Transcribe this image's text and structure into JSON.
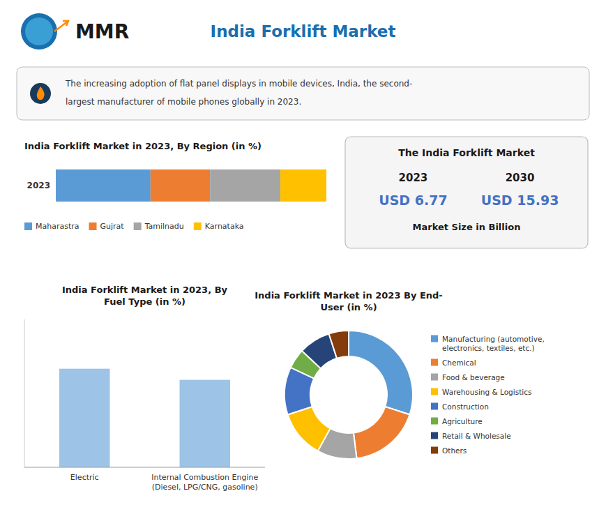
{
  "chart_data": [
    {
      "type": "text",
      "title": "India Forklift Market",
      "annotations": [
        "MMR",
        "The increasing adoption of flat panel displays in mobile devices, India, the second-",
        "largest manufacturer of mobile phones globally in 2023."
      ]
    },
    {
      "type": "bar",
      "orientation": "horizontal",
      "stacked": true,
      "title": "India Forklift Market in 2023, By Region (in %)",
      "categories": [
        "2023"
      ],
      "series": [
        {
          "name": "Maharastra",
          "color": "#5B9BD5",
          "values": [
            35
          ]
        },
        {
          "name": "Gujrat",
          "color": "#ED7D31",
          "values": [
            22
          ]
        },
        {
          "name": "Tamilnadu",
          "color": "#A5A5A5",
          "values": [
            26
          ]
        },
        {
          "name": "Karnataka",
          "color": "#FFC000",
          "values": [
            17
          ]
        }
      ],
      "xlim": [
        0,
        100
      ],
      "tick_labels": "y",
      "legend": "bottom"
    },
    {
      "type": "kpi",
      "title": "The India Forklift Market",
      "subtitle": "Market Size in Billion",
      "categories": [
        "2023",
        "2030"
      ],
      "values": [
        6.77,
        15.93
      ],
      "value_labels": [
        "USD 6.77",
        "USD 15.93"
      ],
      "color": "#4472C4"
    },
    {
      "type": "bar",
      "title": "India Forklift Market in 2023, By\nFuel Type (in %)",
      "categories": [
        "Electric",
        "Internal Combustion Engine\n(Diesel, LPG/CNG, gasoline)"
      ],
      "values": [
        62,
        55
      ],
      "color": "#9DC3E6",
      "ylim": [
        0,
        93
      ],
      "tick_labels": "x"
    },
    {
      "type": "donut",
      "title": "India Forklift Market in 2023 By End-\nUser (in %)",
      "categories": [
        "Manufacturing (automotive,\nelectronics, textiles, etc.)",
        "Chemical",
        "Food & beverage",
        "Warehousing & Logistics",
        "Construction",
        "Agriculture",
        "Retail & Wholesale",
        "Others"
      ],
      "values": [
        30,
        18,
        10,
        12,
        12,
        5,
        8,
        5
      ],
      "colors": [
        "#5B9BD5",
        "#ED7D31",
        "#A5A5A5",
        "#FFC000",
        "#4472C4",
        "#70AD47",
        "#264478",
        "#843C0C"
      ],
      "legend": "right"
    }
  ]
}
